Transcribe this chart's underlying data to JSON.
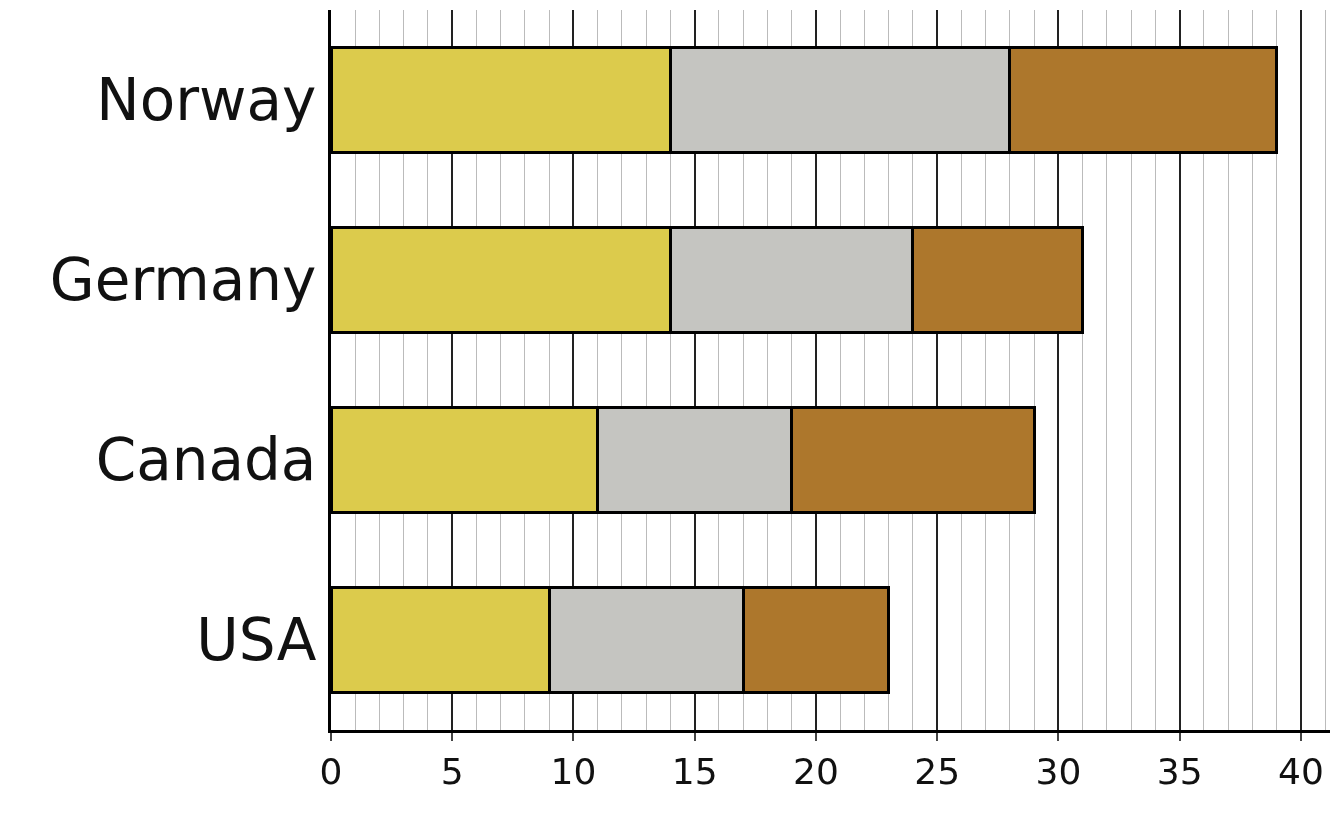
{
  "chart_data": {
    "type": "bar",
    "orientation": "horizontal",
    "stacked": true,
    "categories": [
      "Norway",
      "Germany",
      "Canada",
      "USA"
    ],
    "series": [
      {
        "color": "#dccb4c",
        "values": [
          14,
          14,
          11,
          9
        ]
      },
      {
        "color": "#c5c5c1",
        "values": [
          14,
          10,
          8,
          8
        ]
      },
      {
        "color": "#ad772c",
        "values": [
          11,
          7,
          10,
          6
        ]
      }
    ],
    "xlim": [
      0,
      41.2
    ],
    "xticks": [
      0,
      5,
      10,
      15,
      20,
      25,
      30,
      35,
      40
    ],
    "grid": "x"
  }
}
